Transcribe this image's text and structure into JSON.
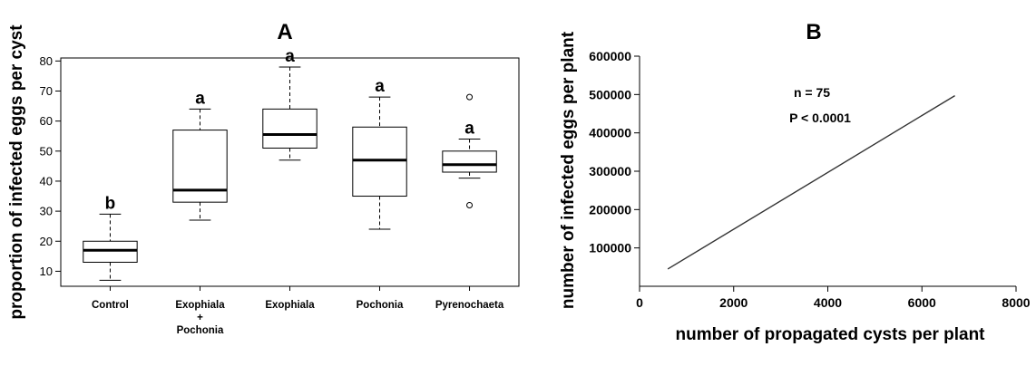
{
  "chart_data": [
    {
      "type": "box",
      "panel_label": "A",
      "ylabel": "proportion of infected eggs per cyst",
      "ylim": [
        5,
        81
      ],
      "yticks": [
        10,
        20,
        30,
        40,
        50,
        60,
        70,
        80
      ],
      "categories": [
        {
          "label_lines": [
            "Control"
          ],
          "whisker_low": 7,
          "q1": 13,
          "median": 17,
          "q3": 20,
          "whisker_high": 29,
          "outliers": [],
          "letter": "b"
        },
        {
          "label_lines": [
            "Exophiala",
            "+",
            "Pochonia"
          ],
          "whisker_low": 27,
          "q1": 33,
          "median": 37,
          "q3": 57,
          "whisker_high": 64,
          "outliers": [],
          "letter": "a"
        },
        {
          "label_lines": [
            "Exophiala"
          ],
          "whisker_low": 47,
          "q1": 51,
          "median": 55.5,
          "q3": 64,
          "whisker_high": 78,
          "outliers": [],
          "letter": "a"
        },
        {
          "label_lines": [
            "Pochonia"
          ],
          "whisker_low": 24,
          "q1": 35,
          "median": 47,
          "q3": 58,
          "whisker_high": 68,
          "outliers": [],
          "letter": "a"
        },
        {
          "label_lines": [
            "Pyrenochaeta"
          ],
          "whisker_low": 41,
          "q1": 43,
          "median": 45.5,
          "q3": 50,
          "whisker_high": 54,
          "outliers": [
            68,
            32
          ],
          "letter": "a"
        }
      ]
    },
    {
      "type": "line",
      "panel_label": "B",
      "xlabel": "number of propagated cysts per plant",
      "ylabel": "number of infected eggs per plant",
      "xlim": [
        0,
        8000
      ],
      "ylim": [
        0,
        600000
      ],
      "xticks": [
        0,
        2000,
        4000,
        6000,
        8000
      ],
      "yticks": [
        100000,
        200000,
        300000,
        400000,
        500000,
        600000
      ],
      "series": [
        {
          "x": [
            600,
            6700
          ],
          "y": [
            45000,
            497000
          ]
        }
      ],
      "annotations": [
        "n = 75",
        "P < 0.0001"
      ]
    }
  ]
}
